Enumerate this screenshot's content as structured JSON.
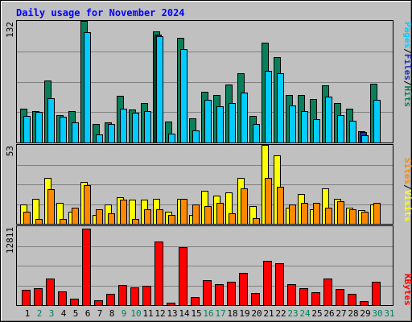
{
  "chart_data": [
    {
      "type": "bar",
      "panel": "pages-files-hits",
      "title": "Daily usage for November 2024",
      "max_label": "132",
      "x": [
        1,
        2,
        3,
        4,
        5,
        6,
        7,
        8,
        9,
        10,
        11,
        12,
        13,
        14,
        15,
        16,
        17,
        18,
        19,
        20,
        21,
        22,
        23,
        24,
        25,
        26,
        27,
        28,
        29,
        30,
        31
      ],
      "series": [
        {
          "name": "Hits",
          "color": "#0b7f5c",
          "values": [
            37,
            34,
            67,
            30,
            34,
            132,
            20,
            22,
            51,
            36,
            43,
            121,
            23,
            114,
            26,
            55,
            52,
            63,
            75,
            29,
            108,
            93,
            52,
            52,
            47,
            62,
            43,
            37,
            12,
            64,
            0
          ]
        },
        {
          "name": "Files",
          "color": "#1a2fb4",
          "values": [
            0,
            0,
            0,
            0,
            0,
            0,
            0,
            0,
            0,
            0,
            0,
            117,
            0,
            0,
            0,
            0,
            0,
            0,
            0,
            0,
            0,
            0,
            0,
            0,
            0,
            0,
            0,
            0,
            11,
            0,
            0
          ]
        },
        {
          "name": "Pages",
          "color": "#00ccff",
          "values": [
            29,
            33,
            48,
            28,
            22,
            120,
            9,
            20,
            37,
            32,
            34,
            115,
            10,
            101,
            13,
            46,
            39,
            43,
            54,
            20,
            78,
            75,
            40,
            34,
            25,
            50,
            30,
            24,
            8,
            46,
            0
          ]
        }
      ],
      "ylim": [
        0,
        132
      ]
    },
    {
      "type": "bar",
      "panel": "visits-sites",
      "max_label": "53",
      "x": [
        1,
        2,
        3,
        4,
        5,
        6,
        7,
        8,
        9,
        10,
        11,
        12,
        13,
        14,
        15,
        16,
        17,
        18,
        19,
        20,
        21,
        22,
        23,
        24,
        25,
        26,
        27,
        28,
        29,
        30,
        31
      ],
      "series": [
        {
          "name": "Visits",
          "color": "#ffff00",
          "values": [
            13,
            17,
            31,
            14,
            8,
            28,
            6,
            13,
            18,
            16,
            16,
            17,
            8,
            17,
            6,
            22,
            19,
            21,
            31,
            12,
            53,
            46,
            11,
            20,
            10,
            24,
            17,
            11,
            9,
            13,
            0
          ]
        },
        {
          "name": "Sites",
          "color": "#ff8800",
          "values": [
            8,
            3,
            23,
            3,
            11,
            26,
            10,
            7,
            16,
            3,
            10,
            10,
            6,
            17,
            13,
            12,
            14,
            7,
            24,
            4,
            31,
            25,
            13,
            14,
            14,
            11,
            15,
            10,
            8,
            14,
            0
          ]
        }
      ],
      "ylim": [
        0,
        53
      ]
    },
    {
      "type": "bar",
      "panel": "kbytes",
      "max_label": "12811",
      "x": [
        1,
        2,
        3,
        4,
        5,
        6,
        7,
        8,
        9,
        10,
        11,
        12,
        13,
        14,
        15,
        16,
        17,
        18,
        19,
        20,
        21,
        22,
        23,
        24,
        25,
        26,
        27,
        28,
        29,
        30,
        31
      ],
      "series": [
        {
          "name": "KBytes",
          "color": "#ff0000",
          "values": [
            2555,
            2766,
            4508,
            2342,
            1064,
            12811,
            802,
            1832,
            3339,
            2975,
            3195,
            10705,
            415,
            9742,
            1343,
            4129,
            3534,
            3898,
            5380,
            2041,
            7402,
            6967,
            3477,
            2870,
            2126,
            4444,
            2757,
            1914,
            682,
            3968,
            0
          ]
        }
      ],
      "ylim": [
        0,
        12811
      ]
    }
  ],
  "legend_right": {
    "top": [
      {
        "text": "Pages",
        "color": "#00ccff"
      },
      {
        "text": "/",
        "color": "#000000"
      },
      {
        "text": "Files",
        "color": "#1a2fb4"
      },
      {
        "text": "/",
        "color": "#000000"
      },
      {
        "text": "Hits",
        "color": "#0b7f5c"
      }
    ],
    "middle": [
      {
        "text": "Sites",
        "color": "#ff8800"
      },
      {
        "text": "/",
        "color": "#000000"
      },
      {
        "text": "Visits",
        "color": "#ffff00"
      }
    ],
    "bottom": [
      {
        "text": "KBytes",
        "color": "#ff0000"
      }
    ]
  },
  "day_labels": [
    "1",
    "2",
    "3",
    "4",
    "5",
    "6",
    "7",
    "8",
    "9",
    "10",
    "11",
    "12",
    "13",
    "14",
    "15",
    "16",
    "17",
    "18",
    "19",
    "20",
    "21",
    "22",
    "23",
    "24",
    "25",
    "26",
    "27",
    "28",
    "29",
    "30",
    "31"
  ],
  "weekend_days": [
    2,
    3,
    9,
    10,
    16,
    17,
    23,
    24,
    30,
    31
  ],
  "colors": {
    "background": "#c0c0c0",
    "title": "#0000ff",
    "weekend_label": "#00805c",
    "weekday_label": "#000000"
  }
}
